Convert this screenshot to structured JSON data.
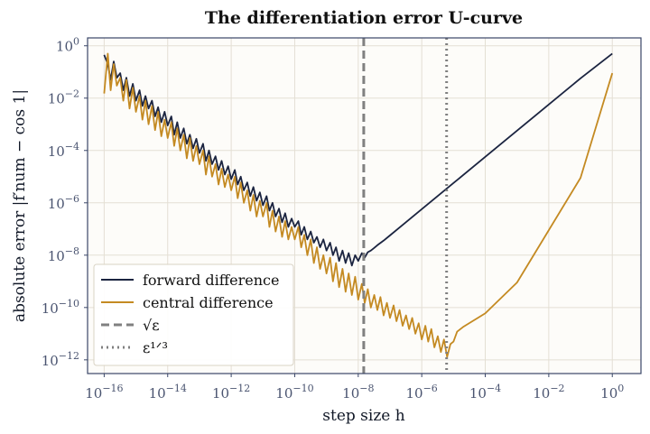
{
  "chart_data": {
    "type": "line",
    "title": "The differentiation error U-curve",
    "xlabel": "step size  h",
    "ylabel": "absolute error  |f′num − cos 1|",
    "x_scale": "log",
    "y_scale": "log",
    "xlim": [
      3e-17,
      8.0
    ],
    "ylim": [
      3e-13,
      2.0
    ],
    "x_ticks": [
      {
        "base": "10",
        "exp": "−16",
        "value": 1e-16
      },
      {
        "base": "10",
        "exp": "−14",
        "value": 1e-14
      },
      {
        "base": "10",
        "exp": "−12",
        "value": 1e-12
      },
      {
        "base": "10",
        "exp": "−10",
        "value": 1e-10
      },
      {
        "base": "10",
        "exp": "−8",
        "value": 1e-08
      },
      {
        "base": "10",
        "exp": "−6",
        "value": 1e-06
      },
      {
        "base": "10",
        "exp": "−4",
        "value": 0.0001
      },
      {
        "base": "10",
        "exp": "−2",
        "value": 0.01
      },
      {
        "base": "10",
        "exp": "0",
        "value": 1
      }
    ],
    "y_ticks": [
      {
        "base": "10",
        "exp": "0",
        "value": 1
      },
      {
        "base": "10",
        "exp": "−2",
        "value": 0.01
      },
      {
        "base": "10",
        "exp": "−4",
        "value": 0.0001
      },
      {
        "base": "10",
        "exp": "−6",
        "value": 1e-06
      },
      {
        "base": "10",
        "exp": "−8",
        "value": 1e-08
      },
      {
        "base": "10",
        "exp": "−10",
        "value": 1e-10
      },
      {
        "base": "10",
        "exp": "−12",
        "value": 1e-12
      }
    ],
    "grid": true,
    "legend_position": "lower-left",
    "series": [
      {
        "name": "forward difference",
        "color": "#1b2440",
        "points": [
          [
            1e-16,
            0.45
          ],
          [
            1.3e-16,
            0.2
          ],
          [
            1.6e-16,
            0.05
          ],
          [
            2e-16,
            0.25
          ],
          [
            2.5e-16,
            0.06
          ],
          [
            3.2e-16,
            0.09
          ],
          [
            4e-16,
            0.02
          ],
          [
            5e-16,
            0.06
          ],
          [
            6.3e-16,
            0.012
          ],
          [
            8e-16,
            0.035
          ],
          [
            1e-15,
            0.008
          ],
          [
            1.3e-15,
            0.02
          ],
          [
            1.6e-15,
            0.005
          ],
          [
            2e-15,
            0.012
          ],
          [
            2.5e-15,
            0.004
          ],
          [
            3.2e-15,
            0.008
          ],
          [
            4e-15,
            0.002
          ],
          [
            5e-15,
            0.0045
          ],
          [
            6.3e-15,
            0.0012
          ],
          [
            8e-15,
            0.003
          ],
          [
            1e-14,
            0.0009
          ],
          [
            1.3e-14,
            0.002
          ],
          [
            1.6e-14,
            0.0004
          ],
          [
            2e-14,
            0.0012
          ],
          [
            2.5e-14,
            0.0003
          ],
          [
            3.2e-14,
            0.0007
          ],
          [
            4e-14,
            0.00018
          ],
          [
            5e-14,
            0.0004
          ],
          [
            6.3e-14,
            0.00012
          ],
          [
            8e-14,
            0.00028
          ],
          [
            1e-13,
            8e-05
          ],
          [
            1.3e-13,
            0.00018
          ],
          [
            1.6e-13,
            4e-05
          ],
          [
            2e-13,
            0.0001
          ],
          [
            2.5e-13,
            3e-05
          ],
          [
            3.2e-13,
            6e-05
          ],
          [
            4e-13,
            1.8e-05
          ],
          [
            5e-13,
            4e-05
          ],
          [
            6.3e-13,
            1.2e-05
          ],
          [
            8e-13,
            2.5e-05
          ],
          [
            1e-12,
            8e-06
          ],
          [
            1.3e-12,
            1.8e-05
          ],
          [
            1.6e-12,
            5e-06
          ],
          [
            2e-12,
            1e-05
          ],
          [
            2.5e-12,
            3e-06
          ],
          [
            3.2e-12,
            6e-06
          ],
          [
            4e-12,
            1.8e-06
          ],
          [
            5e-12,
            4e-06
          ],
          [
            6.3e-12,
            1.2e-06
          ],
          [
            8e-12,
            2.5e-06
          ],
          [
            1e-11,
            8e-07
          ],
          [
            1.3e-11,
            1.8e-06
          ],
          [
            1.6e-11,
            5e-07
          ],
          [
            2e-11,
            1e-06
          ],
          [
            2.5e-11,
            3e-07
          ],
          [
            3.2e-11,
            6e-07
          ],
          [
            4e-11,
            1.8e-07
          ],
          [
            5e-11,
            4e-07
          ],
          [
            6.3e-11,
            1.2e-07
          ],
          [
            8e-11,
            2.5e-07
          ],
          [
            1e-10,
            1.2e-07
          ],
          [
            1.3e-10,
            2e-07
          ],
          [
            1.6e-10,
            6e-08
          ],
          [
            2e-10,
            1.2e-07
          ],
          [
            2.5e-10,
            4e-08
          ],
          [
            3.2e-10,
            8e-08
          ],
          [
            4e-10,
            3e-08
          ],
          [
            5e-10,
            5e-08
          ],
          [
            6.3e-10,
            2e-08
          ],
          [
            8e-10,
            4e-08
          ],
          [
            1e-09,
            1.5e-08
          ],
          [
            1.3e-09,
            3e-08
          ],
          [
            1.6e-09,
            1e-08
          ],
          [
            2e-09,
            2e-08
          ],
          [
            2.5e-09,
            6e-09
          ],
          [
            3.2e-09,
            1.5e-08
          ],
          [
            4e-09,
            5e-09
          ],
          [
            5e-09,
            1.2e-08
          ],
          [
            6.3e-09,
            4e-09
          ],
          [
            8e-09,
            1e-08
          ],
          [
            1e-08,
            6e-09
          ],
          [
            1.3e-08,
            1.2e-08
          ],
          [
            1.6e-08,
            8e-09
          ],
          [
            2e-08,
            1.3e-08
          ],
          [
            2.5e-08,
            1.5e-08
          ],
          [
            3.2e-08,
            1.9e-08
          ],
          [
            4e-08,
            2.4e-08
          ],
          [
            6.3e-08,
            3.6e-08
          ],
          [
            1e-07,
            5.7e-08
          ],
          [
            1e-06,
            5.7e-07
          ],
          [
            1e-05,
            5.7e-06
          ],
          [
            0.0001,
            5.7e-05
          ],
          [
            0.001,
            0.00057
          ],
          [
            0.01,
            0.0057
          ],
          [
            0.1,
            0.057
          ],
          [
            1,
            0.5
          ]
        ]
      },
      {
        "name": "central difference",
        "color": "#c48a22",
        "points": [
          [
            1e-16,
            0.015
          ],
          [
            1.3e-16,
            0.5
          ],
          [
            1.6e-16,
            0.02
          ],
          [
            2e-16,
            0.2
          ],
          [
            2.5e-16,
            0.03
          ],
          [
            3.2e-16,
            0.06
          ],
          [
            4e-16,
            0.008
          ],
          [
            5e-16,
            0.05
          ],
          [
            6.3e-16,
            0.004
          ],
          [
            8e-16,
            0.025
          ],
          [
            1e-15,
            0.003
          ],
          [
            1.3e-15,
            0.012
          ],
          [
            1.6e-15,
            0.0015
          ],
          [
            2e-15,
            0.008
          ],
          [
            2.5e-15,
            0.001
          ],
          [
            3.2e-15,
            0.005
          ],
          [
            4e-15,
            0.0006
          ],
          [
            5e-15,
            0.003
          ],
          [
            6.3e-15,
            0.00035
          ],
          [
            8e-15,
            0.0015
          ],
          [
            1e-14,
            0.0003
          ],
          [
            1.3e-14,
            0.0012
          ],
          [
            1.6e-14,
            0.00015
          ],
          [
            2e-14,
            0.0007
          ],
          [
            2.5e-14,
            0.0001
          ],
          [
            3.2e-14,
            0.0004
          ],
          [
            4e-14,
            5e-05
          ],
          [
            5e-14,
            0.0003
          ],
          [
            6.3e-14,
            4e-05
          ],
          [
            8e-14,
            0.00015
          ],
          [
            1e-13,
            3e-05
          ],
          [
            1.3e-13,
            0.0001
          ],
          [
            1.6e-13,
            1.2e-05
          ],
          [
            2e-13,
            6e-05
          ],
          [
            2.5e-13,
            1e-05
          ],
          [
            3.2e-13,
            3e-05
          ],
          [
            4e-13,
            5e-06
          ],
          [
            5e-13,
            2e-05
          ],
          [
            6.3e-13,
            4e-06
          ],
          [
            8e-13,
            1.2e-05
          ],
          [
            1e-12,
            3e-06
          ],
          [
            1.3e-12,
            1e-05
          ],
          [
            1.6e-12,
            1.5e-06
          ],
          [
            2e-12,
            6e-06
          ],
          [
            2.5e-12,
            1e-06
          ],
          [
            3.2e-12,
            3e-06
          ],
          [
            4e-12,
            5e-07
          ],
          [
            5e-12,
            2e-06
          ],
          [
            6.3e-12,
            3e-07
          ],
          [
            8e-12,
            1.2e-06
          ],
          [
            1e-11,
            3e-07
          ],
          [
            1.3e-11,
            1e-06
          ],
          [
            1.6e-11,
            1.2e-07
          ],
          [
            2e-11,
            5e-07
          ],
          [
            2.5e-11,
            8e-08
          ],
          [
            3.2e-11,
            3e-07
          ],
          [
            4e-11,
            5e-08
          ],
          [
            5e-11,
            2e-07
          ],
          [
            6.3e-11,
            4e-08
          ],
          [
            8e-11,
            1.2e-07
          ],
          [
            1e-10,
            4e-08
          ],
          [
            1.3e-10,
            1.2e-07
          ],
          [
            1.6e-10,
            2e-08
          ],
          [
            2e-10,
            6e-08
          ],
          [
            2.5e-10,
            1e-08
          ],
          [
            3.2e-10,
            4e-08
          ],
          [
            4e-10,
            5e-09
          ],
          [
            5e-10,
            2e-08
          ],
          [
            6.3e-10,
            3e-09
          ],
          [
            8e-10,
            1e-08
          ],
          [
            1e-09,
            2e-09
          ],
          [
            1.3e-09,
            8e-09
          ],
          [
            1.6e-09,
            1e-09
          ],
          [
            2e-09,
            5e-09
          ],
          [
            2.5e-09,
            6e-10
          ],
          [
            3.2e-09,
            3e-09
          ],
          [
            4e-09,
            4e-10
          ],
          [
            5e-09,
            2e-09
          ],
          [
            6.3e-09,
            3e-10
          ],
          [
            8e-09,
            1.5e-09
          ],
          [
            1e-08,
            2e-10
          ],
          [
            1.3e-08,
            8e-10
          ],
          [
            1.6e-08,
            1.5e-10
          ],
          [
            2e-08,
            5e-10
          ],
          [
            2.5e-08,
            1e-10
          ],
          [
            3.2e-08,
            3e-10
          ],
          [
            4e-08,
            8e-11
          ],
          [
            5e-08,
            2.5e-10
          ],
          [
            6.3e-08,
            5e-11
          ],
          [
            8e-08,
            1.5e-10
          ],
          [
            1e-07,
            4e-11
          ],
          [
            1.3e-07,
            1.2e-10
          ],
          [
            1.6e-07,
            3e-11
          ],
          [
            2e-07,
            8e-11
          ],
          [
            2.5e-07,
            2e-11
          ],
          [
            3.2e-07,
            5e-11
          ],
          [
            4e-07,
            1.5e-11
          ],
          [
            5e-07,
            4e-11
          ],
          [
            6.3e-07,
            1e-11
          ],
          [
            8e-07,
            2.5e-11
          ],
          [
            1e-06,
            6e-12
          ],
          [
            1.3e-06,
            2e-11
          ],
          [
            1.6e-06,
            5e-12
          ],
          [
            2e-06,
            1.5e-11
          ],
          [
            2.5e-06,
            3e-12
          ],
          [
            3.2e-06,
            8e-12
          ],
          [
            4e-06,
            2e-12
          ],
          [
            5e-06,
            6e-12
          ],
          [
            6.3e-06,
            1.3e-12
          ],
          [
            8e-06,
            4e-12
          ],
          [
            1e-05,
            5e-12
          ],
          [
            1.3e-05,
            1.2e-11
          ],
          [
            2e-05,
            1.8e-11
          ],
          [
            0.0001,
            6e-11
          ],
          [
            0.001,
            9e-10
          ],
          [
            0.01,
            9e-08
          ],
          [
            0.1,
            9e-06
          ],
          [
            1,
            0.09
          ]
        ]
      }
    ],
    "vlines": [
      {
        "x": 1.49e-08,
        "style": "dashed",
        "color": "#808080",
        "label": "√ε"
      },
      {
        "x": 6.06e-06,
        "style": "dotted",
        "color": "#808080",
        "label": "ε¹ᐟ³"
      }
    ],
    "legend": [
      {
        "label": "forward difference",
        "kind": "solid",
        "color": "#1b2440"
      },
      {
        "label": "central difference",
        "kind": "solid",
        "color": "#c48a22"
      },
      {
        "label": "√ε",
        "kind": "dashed",
        "color": "#808080"
      },
      {
        "label": "ε¹ᐟ³",
        "kind": "dotted",
        "color": "#808080"
      }
    ]
  }
}
